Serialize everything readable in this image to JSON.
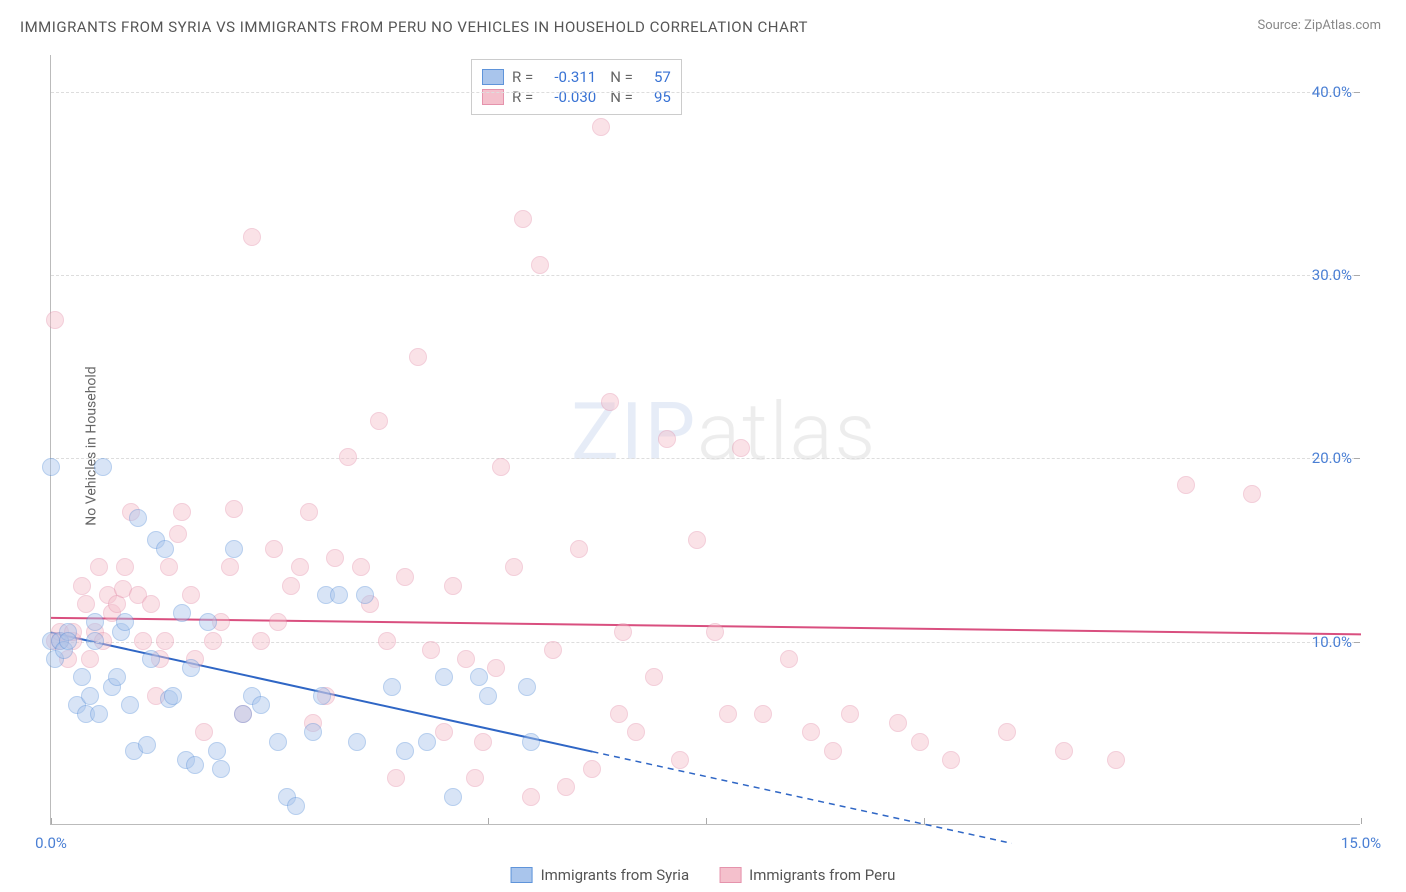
{
  "title": "IMMIGRANTS FROM SYRIA VS IMMIGRANTS FROM PERU NO VEHICLES IN HOUSEHOLD CORRELATION CHART",
  "source": "Source: ZipAtlas.com",
  "ylabel": "No Vehicles in Household",
  "watermark": {
    "zip": "ZIP",
    "atlas": "atlas"
  },
  "chart": {
    "type": "scatter",
    "xlim": [
      0,
      15
    ],
    "ylim": [
      0,
      42
    ],
    "xticks": [
      0,
      5,
      7.5,
      10,
      15
    ],
    "xticks_labeled": {
      "0": "0.0%",
      "15": "15.0%"
    },
    "yticks": [
      10,
      20,
      30,
      40
    ],
    "ytick_fmt": "pct1",
    "grid_color": "#dddddd",
    "axis_tick_color": "#4a7fd4",
    "background_color": "#ffffff",
    "point_radius": 9,
    "point_opacity": 0.45,
    "series": [
      {
        "key": "syria",
        "label": "Immigrants from Syria",
        "fill": "#a9c5ec",
        "stroke": "#5f94da",
        "line_color": "#2f66c5",
        "R": "-0.311",
        "N": "57",
        "reg": {
          "x1": 0,
          "y1": 10.5,
          "x2_solid": 6.2,
          "y2_solid": 4.0,
          "x2_dash": 11.0,
          "y2_dash": -1.0
        },
        "points": [
          [
            0.0,
            10.0
          ],
          [
            0.0,
            19.5
          ],
          [
            0.05,
            9.0
          ],
          [
            0.1,
            10.0
          ],
          [
            0.15,
            9.5
          ],
          [
            0.2,
            10.5
          ],
          [
            0.2,
            10.0
          ],
          [
            0.3,
            6.5
          ],
          [
            0.35,
            8.0
          ],
          [
            0.4,
            6.0
          ],
          [
            0.45,
            7.0
          ],
          [
            0.5,
            11.0
          ],
          [
            0.5,
            10.0
          ],
          [
            0.55,
            6.0
          ],
          [
            0.6,
            19.5
          ],
          [
            0.7,
            7.5
          ],
          [
            0.75,
            8.0
          ],
          [
            0.8,
            10.5
          ],
          [
            0.85,
            11.0
          ],
          [
            0.9,
            6.5
          ],
          [
            0.95,
            4.0
          ],
          [
            1.0,
            16.7
          ],
          [
            1.1,
            4.3
          ],
          [
            1.15,
            9.0
          ],
          [
            1.2,
            15.5
          ],
          [
            1.3,
            15.0
          ],
          [
            1.35,
            6.8
          ],
          [
            1.4,
            7.0
          ],
          [
            1.5,
            11.5
          ],
          [
            1.55,
            3.5
          ],
          [
            1.6,
            8.5
          ],
          [
            1.65,
            3.2
          ],
          [
            1.8,
            11.0
          ],
          [
            1.9,
            4.0
          ],
          [
            1.95,
            3.0
          ],
          [
            2.1,
            15.0
          ],
          [
            2.2,
            6.0
          ],
          [
            2.3,
            7.0
          ],
          [
            2.4,
            6.5
          ],
          [
            2.6,
            4.5
          ],
          [
            2.7,
            1.5
          ],
          [
            2.8,
            1.0
          ],
          [
            3.0,
            5.0
          ],
          [
            3.1,
            7.0
          ],
          [
            3.15,
            12.5
          ],
          [
            3.3,
            12.5
          ],
          [
            3.5,
            4.5
          ],
          [
            3.6,
            12.5
          ],
          [
            3.9,
            7.5
          ],
          [
            4.05,
            4.0
          ],
          [
            4.3,
            4.5
          ],
          [
            4.5,
            8.0
          ],
          [
            4.6,
            1.5
          ],
          [
            4.9,
            8.0
          ],
          [
            5.0,
            7.0
          ],
          [
            5.45,
            7.5
          ],
          [
            5.5,
            4.5
          ]
        ]
      },
      {
        "key": "peru",
        "label": "Immigrants from Peru",
        "fill": "#f4c0cc",
        "stroke": "#e593ac",
        "line_color": "#d94f7f",
        "R": "-0.030",
        "N": "95",
        "reg": {
          "x1": 0,
          "y1": 11.3,
          "x2_solid": 15.0,
          "y2_solid": 10.4,
          "x2_dash": 15.0,
          "y2_dash": 10.4
        },
        "points": [
          [
            0.05,
            27.5
          ],
          [
            0.05,
            10.0
          ],
          [
            0.1,
            10.0
          ],
          [
            0.1,
            10.5
          ],
          [
            0.2,
            9.0
          ],
          [
            0.25,
            10.0
          ],
          [
            0.25,
            10.5
          ],
          [
            0.35,
            13.0
          ],
          [
            0.4,
            12.0
          ],
          [
            0.45,
            9.0
          ],
          [
            0.5,
            10.5
          ],
          [
            0.55,
            14.0
          ],
          [
            0.6,
            10.0
          ],
          [
            0.65,
            12.5
          ],
          [
            0.7,
            11.5
          ],
          [
            0.75,
            12.0
          ],
          [
            0.82,
            12.8
          ],
          [
            0.85,
            14.0
          ],
          [
            0.92,
            17.0
          ],
          [
            1.0,
            12.5
          ],
          [
            1.05,
            10.0
          ],
          [
            1.15,
            12.0
          ],
          [
            1.2,
            7.0
          ],
          [
            1.25,
            9.0
          ],
          [
            1.3,
            10.0
          ],
          [
            1.35,
            14.0
          ],
          [
            1.45,
            15.8
          ],
          [
            1.5,
            17.0
          ],
          [
            1.6,
            12.5
          ],
          [
            1.65,
            9.0
          ],
          [
            1.75,
            5.0
          ],
          [
            1.85,
            10.0
          ],
          [
            1.95,
            11.0
          ],
          [
            2.05,
            14.0
          ],
          [
            2.1,
            17.2
          ],
          [
            2.2,
            6.0
          ],
          [
            2.3,
            32.0
          ],
          [
            2.4,
            10.0
          ],
          [
            2.55,
            15.0
          ],
          [
            2.6,
            11.0
          ],
          [
            2.75,
            13.0
          ],
          [
            2.85,
            14.0
          ],
          [
            2.95,
            17.0
          ],
          [
            3.0,
            5.5
          ],
          [
            3.15,
            7.0
          ],
          [
            3.25,
            14.5
          ],
          [
            3.4,
            20.0
          ],
          [
            3.55,
            14.0
          ],
          [
            3.65,
            12.0
          ],
          [
            3.75,
            22.0
          ],
          [
            3.85,
            10.0
          ],
          [
            3.95,
            2.5
          ],
          [
            4.05,
            13.5
          ],
          [
            4.2,
            25.5
          ],
          [
            4.35,
            9.5
          ],
          [
            4.5,
            5.0
          ],
          [
            4.6,
            13.0
          ],
          [
            4.75,
            9.0
          ],
          [
            4.85,
            2.5
          ],
          [
            4.95,
            4.5
          ],
          [
            5.1,
            8.5
          ],
          [
            5.15,
            19.5
          ],
          [
            5.3,
            14.0
          ],
          [
            5.4,
            33.0
          ],
          [
            5.5,
            1.5
          ],
          [
            5.6,
            30.5
          ],
          [
            5.75,
            9.5
          ],
          [
            5.9,
            2.0
          ],
          [
            6.05,
            15.0
          ],
          [
            6.2,
            3.0
          ],
          [
            6.3,
            38.0
          ],
          [
            6.4,
            23.0
          ],
          [
            6.5,
            6.0
          ],
          [
            6.55,
            10.5
          ],
          [
            6.7,
            5.0
          ],
          [
            6.9,
            8.0
          ],
          [
            7.05,
            21.0
          ],
          [
            7.2,
            3.5
          ],
          [
            7.4,
            15.5
          ],
          [
            7.6,
            10.5
          ],
          [
            7.75,
            6.0
          ],
          [
            7.9,
            20.5
          ],
          [
            8.15,
            6.0
          ],
          [
            8.45,
            9.0
          ],
          [
            8.7,
            5.0
          ],
          [
            8.95,
            4.0
          ],
          [
            9.15,
            6.0
          ],
          [
            9.7,
            5.5
          ],
          [
            9.95,
            4.5
          ],
          [
            10.3,
            3.5
          ],
          [
            10.95,
            5.0
          ],
          [
            11.6,
            4.0
          ],
          [
            12.2,
            3.5
          ],
          [
            13.0,
            18.5
          ],
          [
            13.75,
            18.0
          ]
        ]
      }
    ]
  },
  "legend_top": {
    "R_label": "R =",
    "N_label": "N ="
  }
}
